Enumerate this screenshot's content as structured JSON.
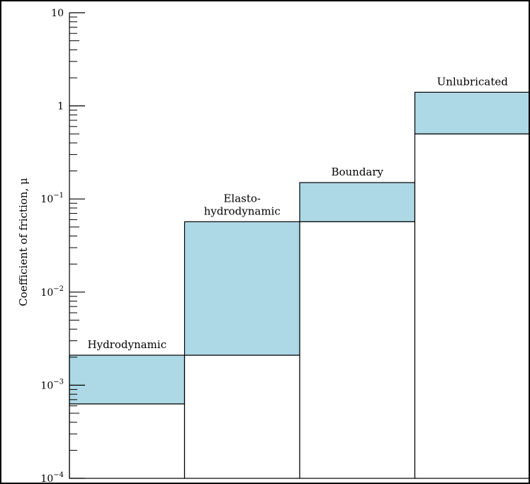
{
  "chart_data": {
    "type": "bar",
    "subtype": "floating-range",
    "title": "",
    "xlabel": "",
    "ylabel": "Coefficient of friction, μ",
    "yscale": "log",
    "ylim": [
      0.0001,
      10
    ],
    "grid": false,
    "legend": "none",
    "colors": {
      "range_fill": "#add8e6",
      "stroke": "#000000",
      "background": "#ffffff"
    },
    "y_ticks": [
      {
        "value": 0.0001,
        "base": "10",
        "exp": "−4"
      },
      {
        "value": 0.001,
        "base": "10",
        "exp": "−3"
      },
      {
        "value": 0.01,
        "base": "10",
        "exp": "−2"
      },
      {
        "value": 0.1,
        "base": "10",
        "exp": "−1"
      },
      {
        "value": 1,
        "base": "1",
        "exp": ""
      },
      {
        "value": 10,
        "base": "10",
        "exp": ""
      }
    ],
    "categories": [
      {
        "lines": [
          "Hydrodynamic"
        ],
        "low": 0.00063,
        "high": 0.0021
      },
      {
        "lines": [
          "Elasto-",
          "hydrodynamic"
        ],
        "low": 0.0021,
        "high": 0.057
      },
      {
        "lines": [
          "Boundary"
        ],
        "low": 0.057,
        "high": 0.15
      },
      {
        "lines": [
          "Unlubricated"
        ],
        "low": 0.5,
        "high": 1.4
      }
    ]
  }
}
